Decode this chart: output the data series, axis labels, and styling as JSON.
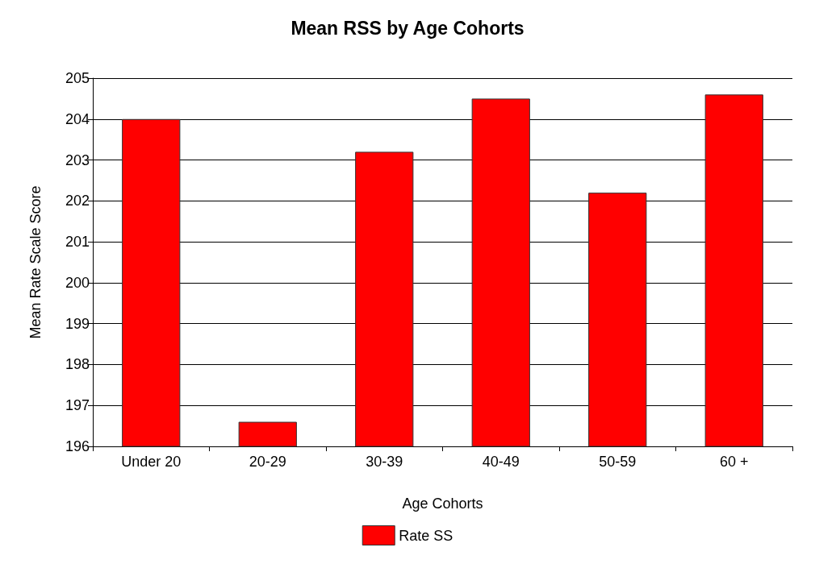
{
  "chart_data": {
    "type": "bar",
    "title": "Mean RSS by Age Cohorts",
    "xlabel": "Age Cohorts",
    "ylabel": "Mean Rate Scale Score",
    "categories": [
      "Under 20",
      "20-29",
      "30-39",
      "40-49",
      "50-59",
      "60 +"
    ],
    "series": [
      {
        "name": "Rate SS",
        "color": "#ff0000",
        "values": [
          204.0,
          196.6,
          203.2,
          204.5,
          202.2,
          204.6
        ]
      }
    ],
    "ylim": [
      196,
      205
    ],
    "yticks": [
      196,
      197,
      198,
      199,
      200,
      201,
      202,
      203,
      204,
      205
    ],
    "grid": "y",
    "legend": "bottom"
  }
}
